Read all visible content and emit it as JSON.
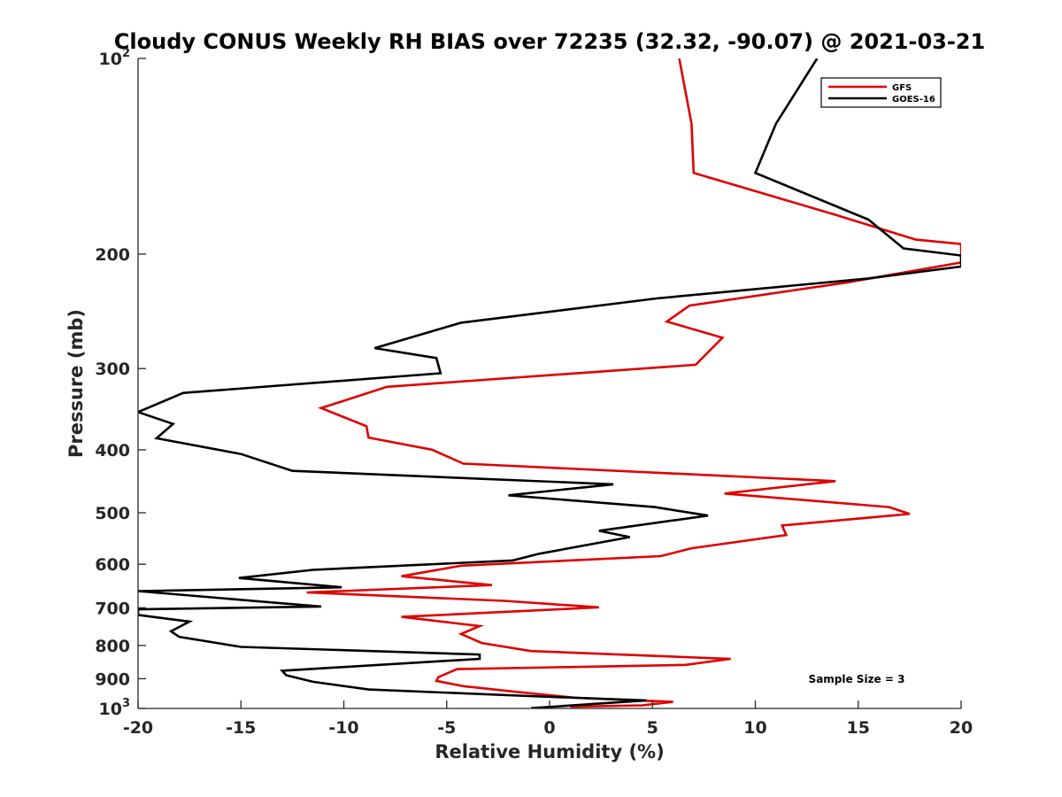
{
  "chart_data": {
    "type": "line",
    "title": "Cloudy CONUS Weekly RH BIAS over 72235 (32.32, -90.07) @ 2021-03-21",
    "xlabel": "Relative Humidity (%)",
    "ylabel": "Pressure (mb)",
    "xlim": [
      -20,
      20
    ],
    "ylim": [
      100,
      1000
    ],
    "yscale": "log",
    "y_reversed": true,
    "x_ticks": [
      "-20",
      "-15",
      "-10",
      "-5",
      "0",
      "5",
      "10",
      "15",
      "20"
    ],
    "y_ticks": [
      {
        "value": 100,
        "label": "10",
        "sup": "2"
      },
      {
        "value": 200,
        "label": "200",
        "sup": ""
      },
      {
        "value": 300,
        "label": "300",
        "sup": ""
      },
      {
        "value": 400,
        "label": "400",
        "sup": ""
      },
      {
        "value": 500,
        "label": "500",
        "sup": ""
      },
      {
        "value": 600,
        "label": "600",
        "sup": ""
      },
      {
        "value": 700,
        "label": "700",
        "sup": ""
      },
      {
        "value": 800,
        "label": "800",
        "sup": ""
      },
      {
        "value": 900,
        "label": "900",
        "sup": ""
      },
      {
        "value": 1000,
        "label": "10",
        "sup": "3"
      }
    ],
    "legend_position": "top-right",
    "annotation": "Sample Size = 3",
    "series": [
      {
        "name": "GFS",
        "color": "#e00000",
        "points": [
          [
            6.3,
            100
          ],
          [
            6.9,
            126
          ],
          [
            7.0,
            150
          ],
          [
            13.9,
            174
          ],
          [
            17.8,
            190
          ],
          [
            20.0,
            193
          ],
          [
            20.0,
            206
          ],
          [
            14.5,
            221
          ],
          [
            6.8,
            240
          ],
          [
            5.7,
            254
          ],
          [
            8.4,
            269
          ],
          [
            7.1,
            296
          ],
          [
            -7.9,
            320
          ],
          [
            -11.1,
            345
          ],
          [
            -8.9,
            368
          ],
          [
            -8.8,
            383
          ],
          [
            -5.7,
            400
          ],
          [
            -4.2,
            420
          ],
          [
            13.9,
            447
          ],
          [
            8.5,
            467
          ],
          [
            16.5,
            490
          ],
          [
            17.5,
            502
          ],
          [
            11.3,
            523
          ],
          [
            11.5,
            541
          ],
          [
            6.9,
            567
          ],
          [
            5.4,
            583
          ],
          [
            -4.3,
            603
          ],
          [
            -7.2,
            626
          ],
          [
            -2.8,
            646
          ],
          [
            -11.8,
            663
          ],
          [
            -2.2,
            683
          ],
          [
            2.4,
            699
          ],
          [
            -7.2,
            723
          ],
          [
            -3.4,
            747
          ],
          [
            -4.3,
            768
          ],
          [
            -3.3,
            793
          ],
          [
            -0.9,
            816
          ],
          [
            8.8,
            839
          ],
          [
            6.6,
            857
          ],
          [
            -4.5,
            870
          ],
          [
            -5.4,
            895
          ],
          [
            -5.5,
            907
          ],
          [
            -4.2,
            924
          ],
          [
            -1.5,
            944
          ],
          [
            1.3,
            963
          ],
          [
            6.0,
            977
          ],
          [
            4.5,
            989
          ],
          [
            1.0,
            994
          ]
        ]
      },
      {
        "name": "GOES-16",
        "color": "#000000",
        "points": [
          [
            13.0,
            100
          ],
          [
            11.0,
            126
          ],
          [
            10.0,
            150
          ],
          [
            15.5,
            177
          ],
          [
            17.2,
            196
          ],
          [
            20.0,
            201
          ],
          [
            20.0,
            209
          ],
          [
            15.5,
            218
          ],
          [
            5.2,
            234
          ],
          [
            -4.3,
            255
          ],
          [
            -8.5,
            279
          ],
          [
            -5.5,
            289
          ],
          [
            -5.3,
            305
          ],
          [
            -17.8,
            327
          ],
          [
            -20.0,
            350
          ],
          [
            -18.3,
            365
          ],
          [
            -19.1,
            384
          ],
          [
            -15.0,
            406
          ],
          [
            -12.5,
            431
          ],
          [
            3.1,
            452
          ],
          [
            -2.0,
            470
          ],
          [
            5.1,
            490
          ],
          [
            7.7,
            505
          ],
          [
            2.4,
            533
          ],
          [
            3.9,
            545
          ],
          [
            -0.5,
            578
          ],
          [
            -1.8,
            592
          ],
          [
            -11.5,
            612
          ],
          [
            -15.1,
            630
          ],
          [
            -10.1,
            651
          ],
          [
            -20.0,
            660
          ],
          [
            -13.7,
            686
          ],
          [
            -11.1,
            697
          ],
          [
            -20.0,
            704
          ],
          [
            -20.0,
            718
          ],
          [
            -17.5,
            735
          ],
          [
            -18.4,
            761
          ],
          [
            -18.0,
            776
          ],
          [
            -15.0,
            804
          ],
          [
            -3.4,
            826
          ],
          [
            -3.4,
            839
          ],
          [
            -13.0,
            875
          ],
          [
            -12.8,
            889
          ],
          [
            -11.5,
            910
          ],
          [
            -8.8,
            935
          ],
          [
            -1.0,
            957
          ],
          [
            4.7,
            972
          ],
          [
            -0.9,
            999
          ]
        ]
      }
    ]
  }
}
